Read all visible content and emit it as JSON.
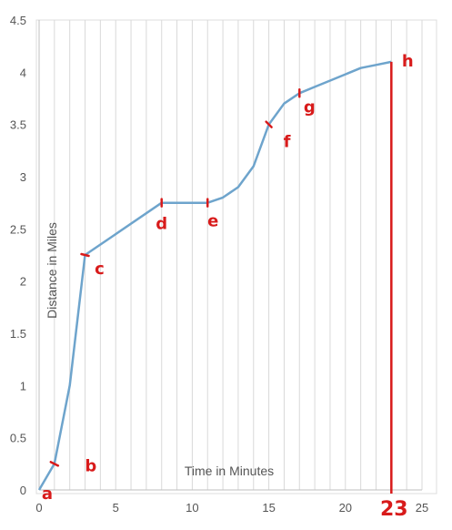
{
  "chart_data": {
    "type": "line",
    "xlabel": "Time in Minutes",
    "ylabel": "Distance in Miles",
    "xlim": [
      0,
      25
    ],
    "ylim": [
      0,
      4.5
    ],
    "xticks": [
      "0",
      "5",
      "10",
      "15",
      "20",
      "25"
    ],
    "yticks": [
      "0",
      "0.5",
      "1",
      "1.5",
      "2",
      "2.5",
      "3",
      "3.5",
      "4",
      "4.5"
    ],
    "grid": "vertical",
    "series": [
      {
        "color": "#6ea4cc",
        "x": [
          0,
          1,
          2,
          3,
          5,
          8,
          9,
          10,
          11,
          12,
          13,
          14,
          15,
          16,
          17,
          18,
          19,
          20,
          21,
          22,
          23
        ],
        "y": [
          0,
          0.25,
          1.0,
          2.25,
          2.45,
          2.75,
          2.75,
          2.75,
          2.75,
          2.8,
          2.9,
          3.1,
          3.5,
          3.7,
          3.8,
          3.86,
          3.92,
          3.98,
          4.04,
          4.07,
          4.1
        ]
      }
    ],
    "annotations": [
      {
        "label": "a",
        "x": 0,
        "y": 0
      },
      {
        "label": "b",
        "x": 1,
        "y": 0.25
      },
      {
        "label": "c",
        "x": 3,
        "y": 2.25
      },
      {
        "label": "d",
        "x": 8,
        "y": 2.75
      },
      {
        "label": "e",
        "x": 11,
        "y": 2.75
      },
      {
        "label": "f",
        "x": 15,
        "y": 3.5
      },
      {
        "label": "g",
        "x": 17,
        "y": 3.8
      },
      {
        "label": "h",
        "x": 23,
        "y": 4.1
      }
    ],
    "vertical_marker": {
      "x": 23,
      "label": "23",
      "color": "#d81b1b"
    }
  }
}
